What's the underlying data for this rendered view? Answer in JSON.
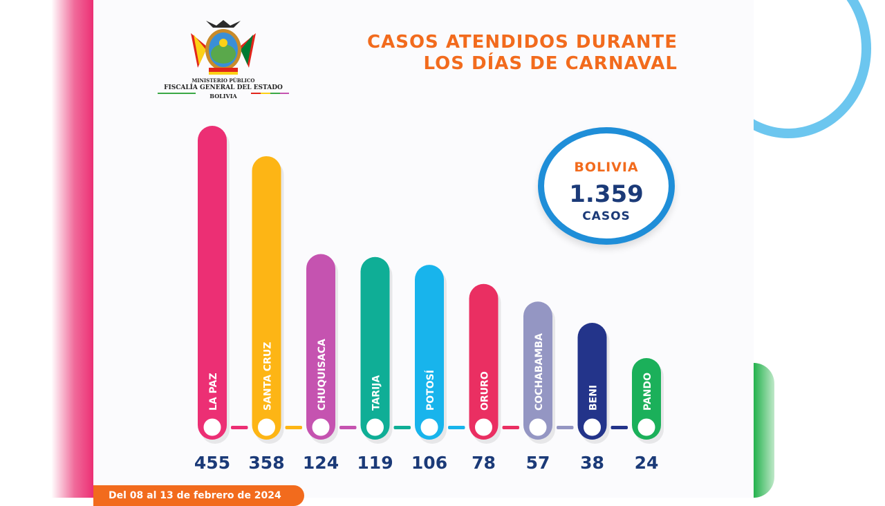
{
  "header": {
    "title_line1": "CASOS ATENDIDOS DURANTE",
    "title_line2": "LOS DÍAS DE CARNAVAL"
  },
  "logo": {
    "line1": "MINISTERIO PÚBLICO",
    "line2": "FISCALÍA GENERAL DEL ESTADO",
    "line3": "BOLIVIA"
  },
  "summary": {
    "label": "BOLIVIA",
    "total": "1.359",
    "unit": "CASOS"
  },
  "footer": {
    "date_range": "Del 08 al 13 de febrero de 2024"
  },
  "colors": {
    "title": "#f26b1d",
    "summary_ring": "#1f8ed8",
    "summary_text": "#1b3a78",
    "values": "#1b3a78"
  },
  "chart_data": {
    "type": "bar",
    "categories": [
      "LA PAZ",
      "SANTA CRUZ",
      "CHUQUISACA",
      "TARIJA",
      "POTOSÍ",
      "ORURO",
      "COCHABAMBA",
      "BENI",
      "PANDO"
    ],
    "values": [
      455,
      358,
      124,
      119,
      106,
      78,
      57,
      38,
      24
    ],
    "value_labels": [
      "455",
      "358",
      "124",
      "119",
      "106",
      "78",
      "57",
      "38",
      "24"
    ],
    "bar_colors": [
      "#ec2f74",
      "#fdb515",
      "#c553b0",
      "#0fae96",
      "#18b4ec",
      "#ea2f62",
      "#9496c3",
      "#23348a",
      "#1bb05a"
    ],
    "title": "",
    "xlabel": "",
    "ylabel": ""
  }
}
